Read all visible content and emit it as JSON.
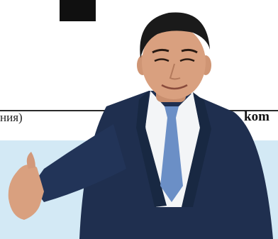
{
  "article": {
    "text_fragment_left": "ния)",
    "text_fragment_right": "kom"
  },
  "colors": {
    "band": "#d3e9f5",
    "suit": "#1f2f4f",
    "tie": "#6b8fc6",
    "skin": "#d9a07f",
    "hair": "#1a1a1a"
  }
}
